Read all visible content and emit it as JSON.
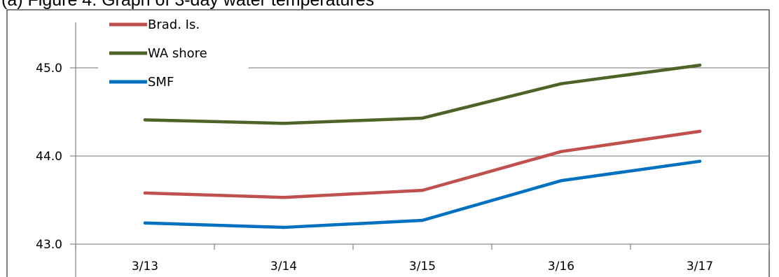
{
  "chart_data": {
    "type": "line",
    "title": "(a) Figure 4. Graph of 3-day water temperatures",
    "categories": [
      "3/13",
      "3/14",
      "3/15",
      "3/16",
      "3/17"
    ],
    "series": [
      {
        "name": "Brad. Is.",
        "color": "#c0504d",
        "values": [
          43.58,
          43.53,
          43.61,
          44.05,
          44.28
        ]
      },
      {
        "name": "WA shore",
        "color": "#4f6228",
        "values": [
          44.41,
          44.37,
          44.43,
          44.82,
          45.03
        ]
      },
      {
        "name": "SMF",
        "color": "#0070c0",
        "values": [
          43.24,
          43.19,
          43.27,
          43.72,
          43.94
        ]
      }
    ],
    "y_ticks": [
      "45.0",
      "44.0",
      "43.0"
    ],
    "y_tick_values": [
      45.0,
      44.0,
      43.0
    ],
    "ylim": [
      43.0,
      45.6
    ],
    "grid": true,
    "legend_position": "top-left"
  }
}
